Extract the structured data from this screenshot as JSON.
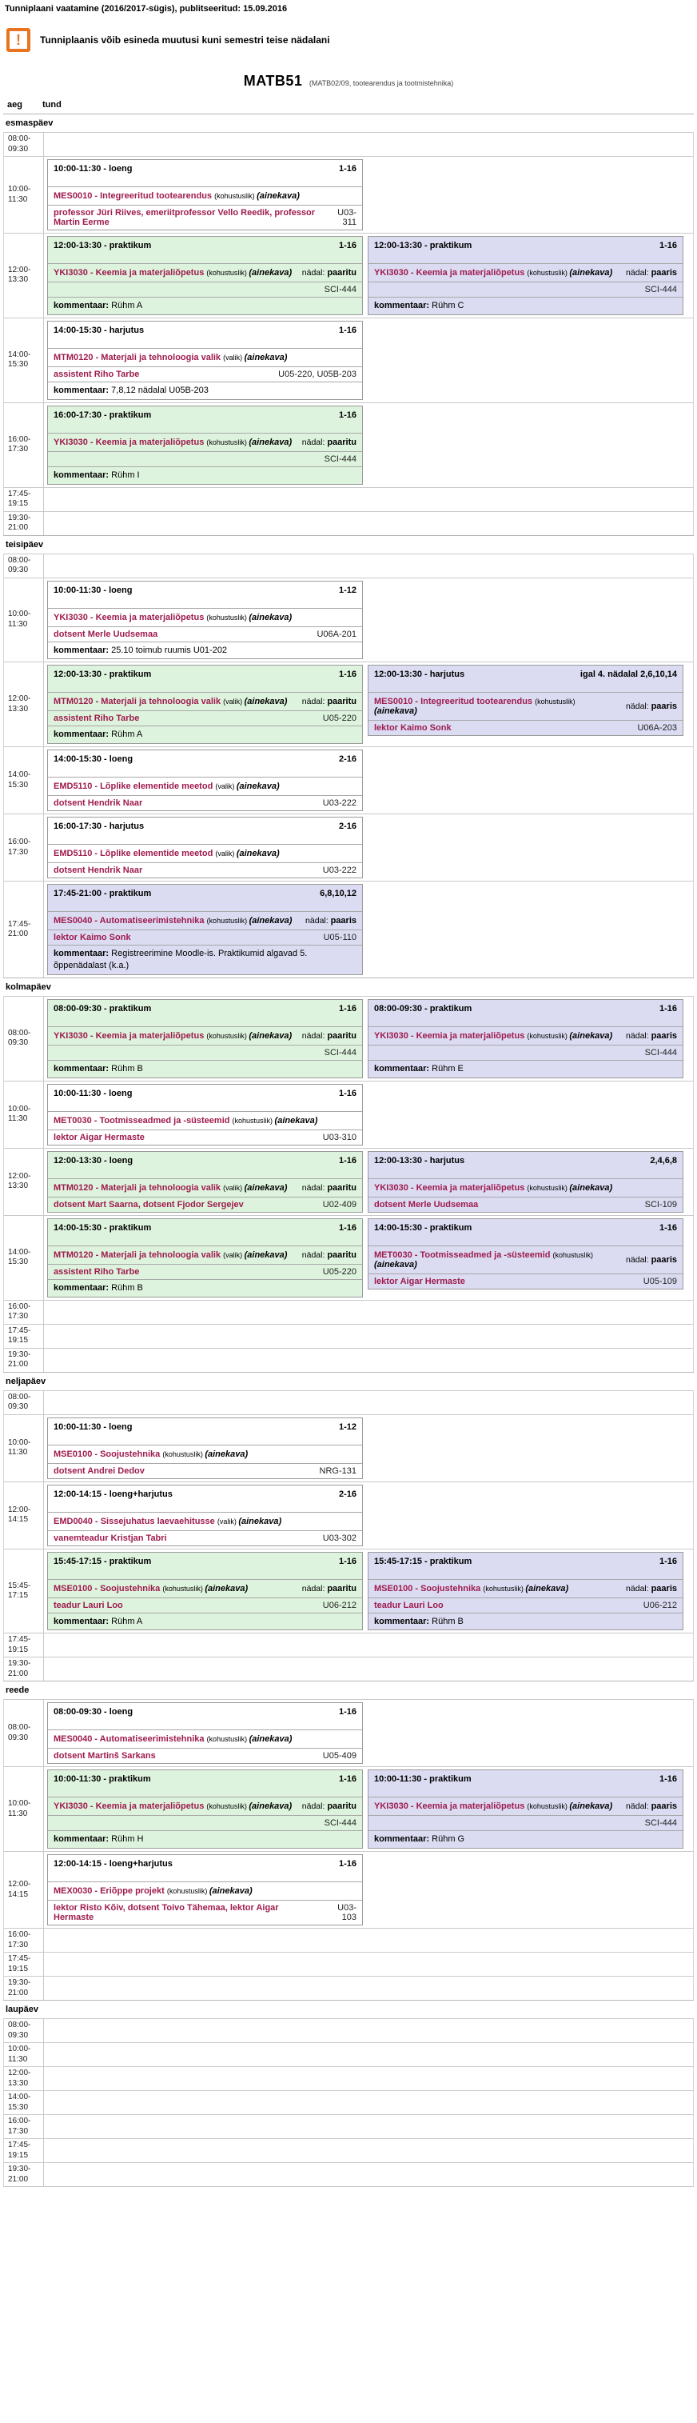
{
  "colors": {
    "maroon": "#9e1c4e",
    "green": "#ddf3dd",
    "purple": "#dbdbf2",
    "orange": "#e87420"
  },
  "header": {
    "title_line": "Tunniplaani vaatamine (2016/2017-sügis), publitseeritud: 15.09.2016",
    "warning_icon": "!",
    "warning": "Tunniplaanis võib esineda muutusi kuni semestri teise nädalani",
    "group_code": "MATB51",
    "group_subtitle": "(MATB02/09, tootearendus ja tootmistehnika)",
    "col_aeg": "aeg",
    "col_tund": "tund"
  },
  "labels": {
    "ainekava": "(ainekava)",
    "nadal": "nädal:",
    "kommentaar": "kommentaar:"
  },
  "days": [
    {
      "name": "esmaspäev",
      "rows": [
        {
          "time": "08:00-09:30",
          "cards": []
        },
        {
          "time": "10:00-11:30",
          "cards": [
            {
              "variant": "white",
              "type": "loeng",
              "weeks": "1-16",
              "course": "MES0010 - Integreeritud tootearendus",
              "req": "(kohustuslik)",
              "lecturers": "professor Jüri Riives, emeriitprofessor Vello Reedik, professor Martin Eerme",
              "room": "U03-311"
            }
          ]
        },
        {
          "time": "12:00-13:30",
          "cards": [
            {
              "variant": "green",
              "type": "praktikum",
              "weeks": "1-16",
              "course": "YKI3030 - Keemia ja materjaliõpetus",
              "req": "(kohustuslik)",
              "nadal": "paaritu",
              "room": "SCI-444",
              "comment": "Rühm A"
            },
            {
              "variant": "purple",
              "type": "praktikum",
              "weeks": "1-16",
              "course": "YKI3030 - Keemia ja materjaliõpetus",
              "req": "(kohustuslik)",
              "nadal": "paaris",
              "room": "SCI-444",
              "comment": "Rühm C"
            }
          ]
        },
        {
          "time": "14:00-15:30",
          "cards": [
            {
              "variant": "white",
              "type": "harjutus",
              "weeks": "1-16",
              "course": "MTM0120 - Materjali ja tehnoloogia valik",
              "req": "(valik)",
              "lecturers": "assistent Riho Tarbe",
              "room": "U05-220, U05B-203",
              "comment": "7,8,12 nädalal U05B-203"
            }
          ]
        },
        {
          "time": "16:00-17:30",
          "cards": [
            {
              "variant": "green",
              "type": "praktikum",
              "weeks": "1-16",
              "course": "YKI3030 - Keemia ja materjaliõpetus",
              "req": "(kohustuslik)",
              "nadal": "paaritu",
              "room": "SCI-444",
              "comment": "Rühm I"
            }
          ]
        },
        {
          "time": "17:45-19:15",
          "cards": []
        },
        {
          "time": "19:30-21:00",
          "cards": []
        }
      ]
    },
    {
      "name": "teisipäev",
      "rows": [
        {
          "time": "08:00-09:30",
          "cards": []
        },
        {
          "time": "10:00-11:30",
          "cards": [
            {
              "variant": "white",
              "type": "loeng",
              "weeks": "1-12",
              "course": "YKI3030 - Keemia ja materjaliõpetus",
              "req": "(kohustuslik)",
              "lecturers": "dotsent Merle Uudsemaa",
              "room": "U06A-201",
              "comment": "25.10 toimub ruumis U01-202"
            }
          ]
        },
        {
          "time": "12:00-13:30",
          "cards": [
            {
              "variant": "green",
              "type": "praktikum",
              "weeks": "1-16",
              "course": "MTM0120 - Materjali ja tehnoloogia valik",
              "req": "(valik)",
              "nadal": "paaritu",
              "lecturers": "assistent Riho Tarbe",
              "room": "U05-220",
              "comment": "Rühm A"
            },
            {
              "variant": "purple",
              "type": "harjutus",
              "weeks": "igal 4. nädalal 2,6,10,14",
              "course": "MES0010 - Integreeritud tootearendus",
              "req": "(kohustuslik)",
              "nadal": "paaris",
              "lecturers": "lektor Kaimo Sonk",
              "room": "U06A-203"
            }
          ]
        },
        {
          "time": "14:00-15:30",
          "cards": [
            {
              "variant": "white",
              "type": "loeng",
              "weeks": "2-16",
              "course": "EMD5110 - Lõplike elementide meetod",
              "req": "(valik)",
              "lecturers": "dotsent Hendrik Naar",
              "room": "U03-222"
            }
          ]
        },
        {
          "time": "16:00-17:30",
          "cards": [
            {
              "variant": "white",
              "type": "harjutus",
              "weeks": "2-16",
              "course": "EMD5110 - Lõplike elementide meetod",
              "req": "(valik)",
              "lecturers": "dotsent Hendrik Naar",
              "room": "U03-222"
            }
          ]
        },
        {
          "time": "17:45-21:00",
          "cards": [
            {
              "variant": "purple",
              "type": "praktikum",
              "weeks": "6,8,10,12",
              "course": "MES0040 - Automatiseerimistehnika",
              "req": "(kohustuslik)",
              "nadal": "paaris",
              "lecturers": "lektor Kaimo Sonk",
              "room": "U05-110",
              "comment": "Registreerimine Moodle-is. Praktikumid algavad 5. õppenädalast (k.a.)"
            }
          ]
        }
      ]
    },
    {
      "name": "kolmapäev",
      "rows": [
        {
          "time": "08:00-09:30",
          "cards": [
            {
              "variant": "green",
              "type": "praktikum",
              "weeks": "1-16",
              "course": "YKI3030 - Keemia ja materjaliõpetus",
              "req": "(kohustuslik)",
              "nadal": "paaritu",
              "room": "SCI-444",
              "comment": "Rühm B"
            },
            {
              "variant": "purple",
              "type": "praktikum",
              "weeks": "1-16",
              "course": "YKI3030 - Keemia ja materjaliõpetus",
              "req": "(kohustuslik)",
              "nadal": "paaris",
              "room": "SCI-444",
              "comment": "Rühm E"
            }
          ]
        },
        {
          "time": "10:00-11:30",
          "cards": [
            {
              "variant": "white",
              "type": "loeng",
              "weeks": "1-16",
              "course": "MET0030 - Tootmisseadmed ja -süsteemid",
              "req": "(kohustuslik)",
              "lecturers": "lektor Aigar Hermaste",
              "room": "U03-310"
            }
          ]
        },
        {
          "time": "12:00-13:30",
          "cards": [
            {
              "variant": "green",
              "type": "loeng",
              "weeks": "1-16",
              "course": "MTM0120 - Materjali ja tehnoloogia valik",
              "req": "(valik)",
              "nadal": "paaritu",
              "lecturers": "dotsent Mart Saarna, dotsent Fjodor Sergejev",
              "room": "U02-409"
            },
            {
              "variant": "purple",
              "type": "harjutus",
              "weeks": "2,4,6,8",
              "course": "YKI3030 - Keemia ja materjaliõpetus",
              "req": "(kohustuslik)",
              "lecturers": "dotsent Merle Uudsemaa",
              "room": "SCI-109"
            }
          ]
        },
        {
          "time": "14:00-15:30",
          "cards": [
            {
              "variant": "green",
              "type": "praktikum",
              "weeks": "1-16",
              "course": "MTM0120 - Materjali ja tehnoloogia valik",
              "req": "(valik)",
              "nadal": "paaritu",
              "lecturers": "assistent Riho Tarbe",
              "room": "U05-220",
              "comment": "Rühm B"
            },
            {
              "variant": "purple",
              "type": "praktikum",
              "weeks": "1-16",
              "course": "MET0030 - Tootmisseadmed ja -süsteemid",
              "req": "(kohustuslik)",
              "nadal": "paaris",
              "lecturers": "lektor Aigar Hermaste",
              "room": "U05-109"
            }
          ]
        },
        {
          "time": "16:00-17:30",
          "cards": []
        },
        {
          "time": "17:45-19:15",
          "cards": []
        },
        {
          "time": "19:30-21:00",
          "cards": []
        }
      ]
    },
    {
      "name": "neljapäev",
      "rows": [
        {
          "time": "08:00-09:30",
          "cards": []
        },
        {
          "time": "10:00-11:30",
          "cards": [
            {
              "variant": "white",
              "type": "loeng",
              "weeks": "1-12",
              "course": "MSE0100 - Soojustehnika",
              "req": "(kohustuslik)",
              "lecturers": "dotsent Andrei Dedov",
              "room": "NRG-131"
            }
          ]
        },
        {
          "time": "12:00-14:15",
          "cards": [
            {
              "variant": "white",
              "type": "loeng+harjutus",
              "weeks": "2-16",
              "course": "EMD0040 - Sissejuhatus laevaehitusse",
              "req": "(valik)",
              "lecturers": "vanemteadur Kristjan Tabri",
              "room": "U03-302"
            }
          ]
        },
        {
          "time": "15:45-17:15",
          "cards": [
            {
              "variant": "green",
              "type": "praktikum",
              "weeks": "1-16",
              "course": "MSE0100 - Soojustehnika",
              "req": "(kohustuslik)",
              "nadal": "paaritu",
              "lecturers": "teadur Lauri Loo",
              "room": "U06-212",
              "comment": "Rühm A"
            },
            {
              "variant": "purple",
              "type": "praktikum",
              "weeks": "1-16",
              "course": "MSE0100 - Soojustehnika",
              "req": "(kohustuslik)",
              "nadal": "paaris",
              "lecturers": "teadur Lauri Loo",
              "room": "U06-212",
              "comment": "Rühm B"
            }
          ]
        },
        {
          "time": "17:45-19:15",
          "cards": []
        },
        {
          "time": "19:30-21:00",
          "cards": []
        }
      ]
    },
    {
      "name": "reede",
      "rows": [
        {
          "time": "08:00-09:30",
          "cards": [
            {
              "variant": "white",
              "type": "loeng",
              "weeks": "1-16",
              "course": "MES0040 - Automatiseerimistehnika",
              "req": "(kohustuslik)",
              "lecturers": "dotsent Martinš Sarkans",
              "room": "U05-409"
            }
          ]
        },
        {
          "time": "10:00-11:30",
          "cards": [
            {
              "variant": "green",
              "type": "praktikum",
              "weeks": "1-16",
              "course": "YKI3030 - Keemia ja materjaliõpetus",
              "req": "(kohustuslik)",
              "nadal": "paaritu",
              "room": "SCI-444",
              "comment": "Rühm H"
            },
            {
              "variant": "purple",
              "type": "praktikum",
              "weeks": "1-16",
              "course": "YKI3030 - Keemia ja materjaliõpetus",
              "req": "(kohustuslik)",
              "nadal": "paaris",
              "room": "SCI-444",
              "comment": "Rühm G"
            }
          ]
        },
        {
          "time": "12:00-14:15",
          "cards": [
            {
              "variant": "white",
              "type": "loeng+harjutus",
              "weeks": "1-16",
              "course": "MEX0030 - Eriõppe projekt",
              "req": "(kohustuslik)",
              "lecturers": "lektor Risto Kõiv, dotsent Toivo Tähemaa, lektor Aigar Hermaste",
              "room": "U03-103"
            }
          ]
        },
        {
          "time": "16:00-17:30",
          "cards": []
        },
        {
          "time": "17:45-19:15",
          "cards": []
        },
        {
          "time": "19:30-21:00",
          "cards": []
        }
      ]
    },
    {
      "name": "laupäev",
      "rows": [
        {
          "time": "08:00-09:30",
          "cards": []
        },
        {
          "time": "10:00-11:30",
          "cards": []
        },
        {
          "time": "12:00-13:30",
          "cards": []
        },
        {
          "time": "14:00-15:30",
          "cards": []
        },
        {
          "time": "16:00-17:30",
          "cards": []
        },
        {
          "time": "17:45-19:15",
          "cards": []
        },
        {
          "time": "19:30-21:00",
          "cards": []
        }
      ]
    }
  ]
}
